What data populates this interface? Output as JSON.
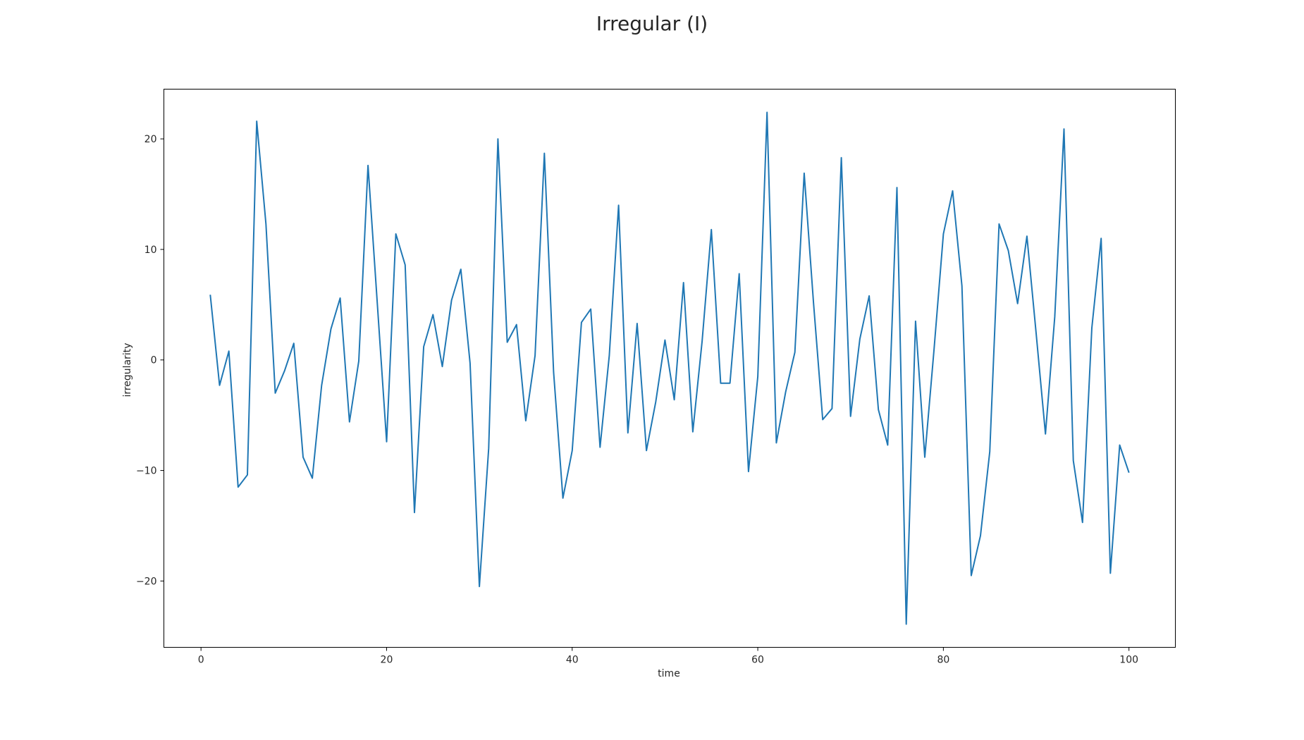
{
  "chart_data": {
    "type": "line",
    "title": "Irregular (I)",
    "xlabel": "time",
    "ylabel": "irregularity",
    "xlim": [
      -4,
      105
    ],
    "ylim": [
      -26,
      24.5
    ],
    "xticks": [
      0,
      20,
      40,
      60,
      80,
      100
    ],
    "yticks": [
      -20,
      -10,
      0,
      10,
      20
    ],
    "grid": false,
    "series_color": "#1f77b4",
    "series": [
      {
        "x": [
          1,
          2,
          3,
          4,
          5,
          6,
          7,
          8,
          9,
          10,
          11,
          12,
          13,
          14,
          15,
          16,
          17,
          18,
          19,
          20,
          21,
          22,
          23,
          24,
          25,
          26,
          27,
          28,
          29,
          30,
          31,
          32,
          33,
          34,
          35,
          36,
          37,
          38,
          39,
          40,
          41,
          42,
          43,
          44,
          45,
          46,
          47,
          48,
          49,
          50,
          51,
          52,
          53,
          54,
          55,
          56,
          57,
          58,
          59,
          60,
          61,
          62,
          63,
          64,
          65,
          66,
          67,
          68,
          69,
          70,
          71,
          72,
          73,
          74,
          75,
          76,
          77,
          78,
          79,
          80,
          81,
          82,
          83,
          84,
          85,
          86,
          87,
          88,
          89,
          90,
          91,
          92,
          93,
          94,
          95,
          96,
          97,
          98,
          99,
          100
        ],
        "values": [
          5.9,
          -2.3,
          0.8,
          -11.5,
          -10.4,
          21.6,
          12.3,
          -3.0,
          -1.0,
          1.5,
          -8.8,
          -10.7,
          -2.3,
          2.8,
          5.6,
          -5.6,
          -0.1,
          17.6,
          5.1,
          -7.4,
          11.4,
          8.6,
          -13.8,
          1.2,
          4.1,
          -0.6,
          5.4,
          8.2,
          -0.3,
          -20.5,
          -8.0,
          20.0,
          1.6,
          3.2,
          -5.5,
          0.4,
          18.7,
          -1.1,
          -12.5,
          -8.2,
          3.4,
          4.6,
          -7.9,
          0.4,
          14.0,
          -6.6,
          3.3,
          -8.2,
          -3.8,
          1.8,
          -3.6,
          7.0,
          -6.5,
          1.7,
          11.8,
          -2.1,
          -2.1,
          7.8,
          -10.1,
          -1.5,
          22.4,
          -7.5,
          -2.9,
          0.7,
          16.9,
          5.2,
          -5.4,
          -4.4,
          18.3,
          -5.1,
          1.9,
          5.8,
          -4.5,
          -7.7,
          15.6,
          -23.9,
          3.5,
          -8.8,
          1.0,
          11.4,
          15.3,
          6.7,
          -19.5,
          -15.9,
          -8.3,
          12.3,
          9.9,
          5.1,
          11.2,
          2.4,
          -6.7,
          3.9,
          20.9,
          -9.1,
          -14.7,
          2.9,
          11.0,
          -19.3,
          -7.7,
          -10.2
        ]
      }
    ]
  }
}
